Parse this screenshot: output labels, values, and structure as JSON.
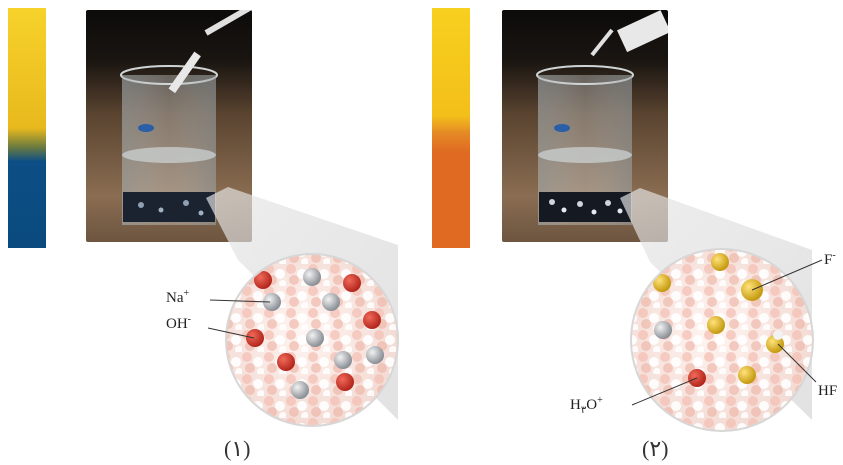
{
  "panel1": {
    "indicator_colors": [
      "#f2c31a",
      "#0a4e82"
    ],
    "labels": {
      "na_base": "Na",
      "na_sup": "+",
      "oh_base": "OH",
      "oh_sup": "-"
    },
    "caption": "(۱)"
  },
  "panel2": {
    "indicator_colors": [
      "#f6c71b",
      "#e06a22"
    ],
    "labels": {
      "f_base": "F",
      "f_sup": "-",
      "hf": "HF",
      "h3o_h": "H",
      "h3o_sub": "۳",
      "h3o_o": "O",
      "h3o_sup": "+"
    },
    "caption": "(۲)"
  }
}
